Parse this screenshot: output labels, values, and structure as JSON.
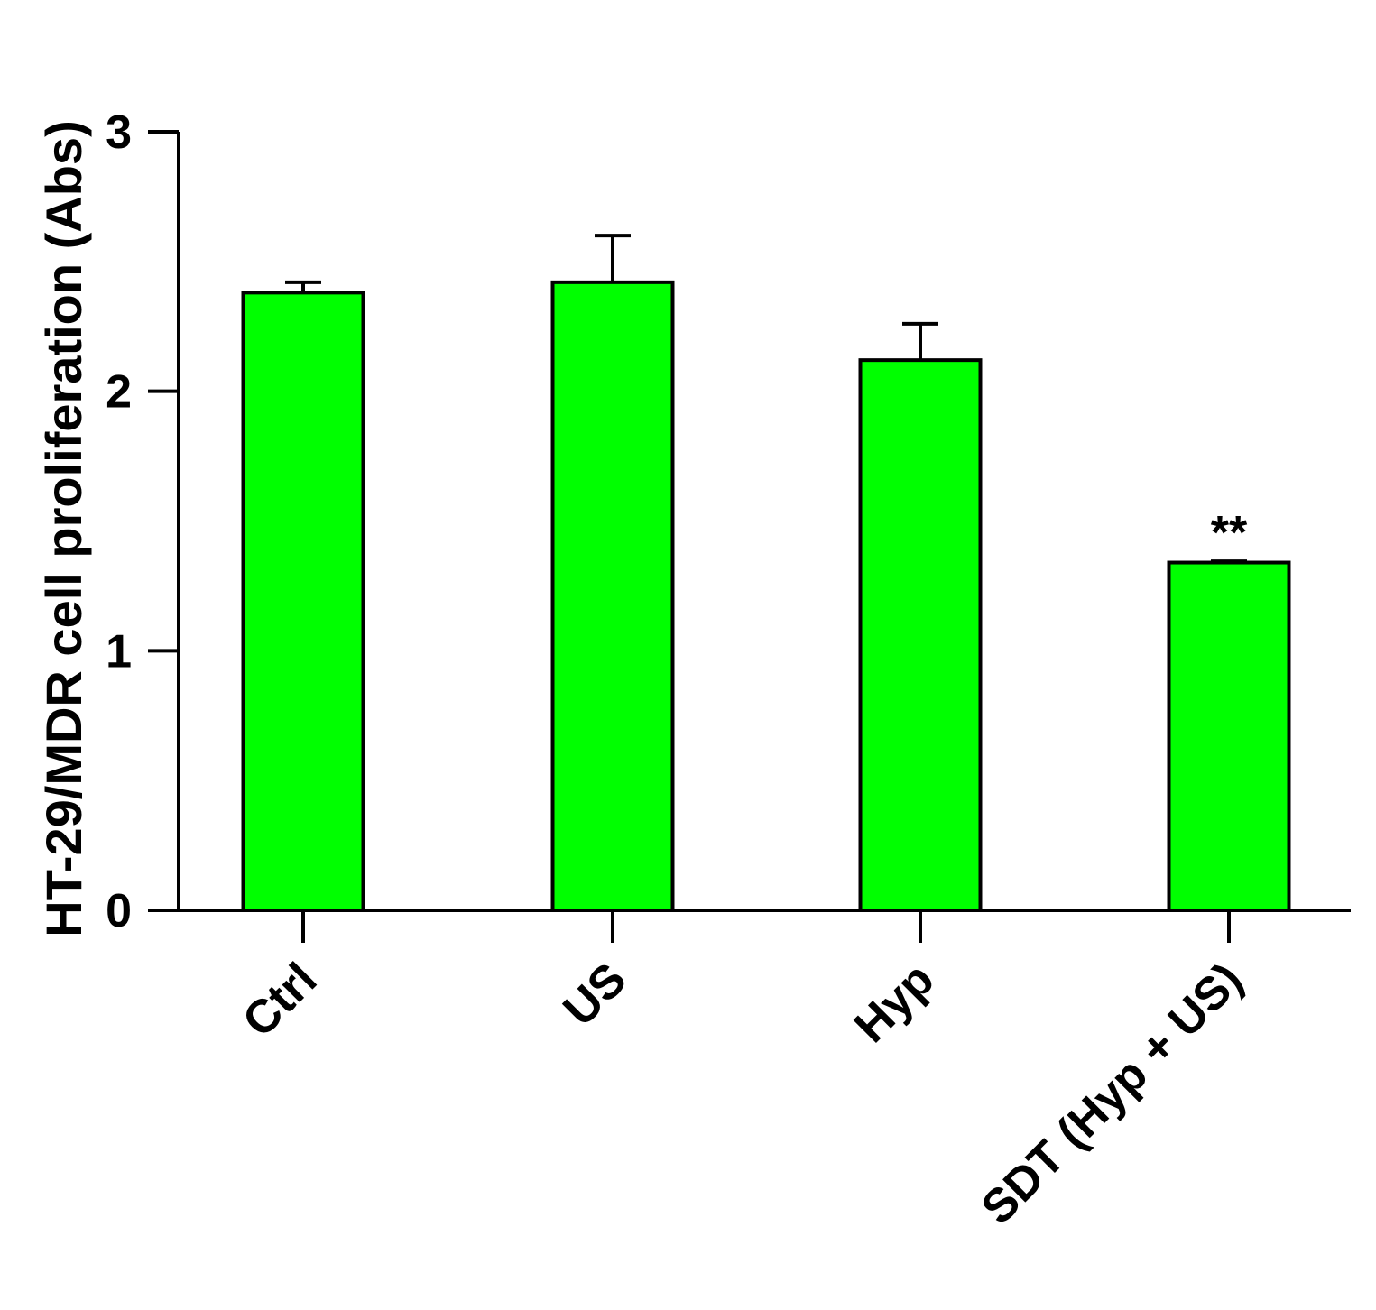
{
  "chart_data": {
    "type": "bar",
    "title": "",
    "xlabel": "",
    "ylabel": "HT-29/MDR cell proliferation (Abs)",
    "ylim": [
      0,
      3
    ],
    "yticks": [
      0,
      1,
      2,
      3
    ],
    "categories": [
      "Ctrl",
      "US",
      "Hyp",
      "SDT (Hyp + US)"
    ],
    "values": [
      2.38,
      2.42,
      2.12,
      1.34
    ],
    "errors": [
      0.04,
      0.18,
      0.14,
      0.005
    ],
    "annotations": [
      "",
      "",
      "",
      "**"
    ],
    "bar_color": "#00ff00",
    "grid": false,
    "legend": "none"
  }
}
